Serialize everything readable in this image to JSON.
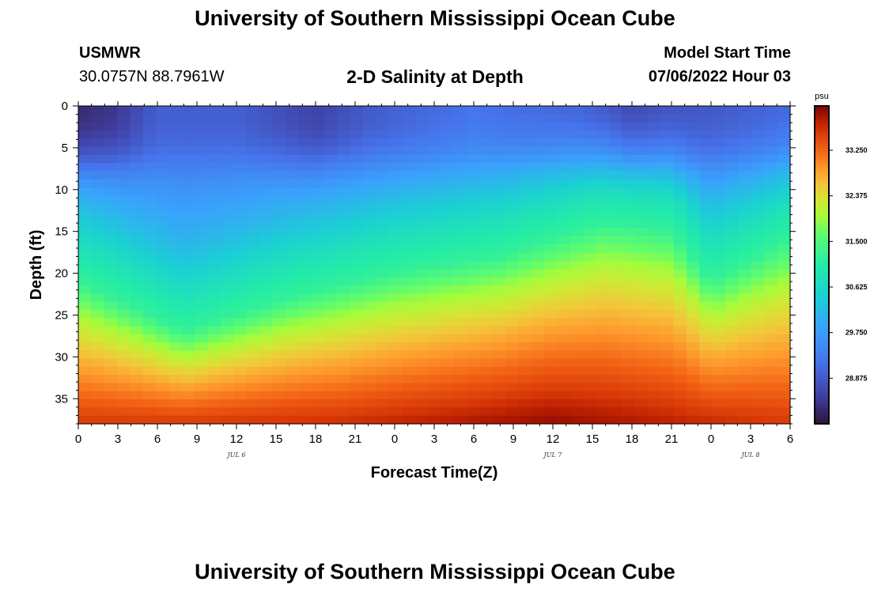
{
  "header": {
    "title": "University of Southern Mississippi Ocean Cube",
    "station": "USMWR",
    "coords": "30.0757N  88.7961W",
    "subtitle": "2-D Salinity at Depth",
    "start_label": "Model Start Time",
    "start_value": "07/06/2022 Hour 03"
  },
  "footer": {
    "title": "University of Southern Mississippi Ocean Cube"
  },
  "chart_data": {
    "type": "heatmap",
    "title": "2-D Salinity at Depth",
    "xlabel": "Forecast Time(Z)",
    "ylabel": "Depth (ft)",
    "x_range_hours": [
      0,
      54
    ],
    "y_range_ft": [
      0,
      38
    ],
    "x_tick_labels": [
      "0",
      "3",
      "6",
      "9",
      "12",
      "15",
      "18",
      "21",
      "0",
      "3",
      "6",
      "9",
      "12",
      "15",
      "18",
      "21",
      "0",
      "3",
      "6"
    ],
    "y_ticks": [
      0,
      5,
      10,
      15,
      20,
      25,
      30,
      35
    ],
    "day_labels": [
      {
        "text": "JUL 6",
        "hour": 12
      },
      {
        "text": "JUL 7",
        "hour": 36
      },
      {
        "text": "JUL 8",
        "hour": 51
      }
    ],
    "colorbar": {
      "unit": "psu",
      "min": 28.0,
      "max": 34.1,
      "tick_values": [
        28.875,
        29.75,
        30.625,
        31.5,
        32.375,
        33.25
      ],
      "tick_labels": [
        "28.875",
        "29.750",
        "30.625",
        "31.500",
        "32.375",
        "33.250"
      ]
    },
    "grid_shape": {
      "cols": 55,
      "rows": 39,
      "dx_hours": 1,
      "dy_ft": 1
    },
    "halocline_depth_ft": [
      {
        "hour": 0,
        "depth": 15
      },
      {
        "hour": 8,
        "depth": 21
      },
      {
        "hour": 16,
        "depth": 17
      },
      {
        "hour": 24,
        "depth": 14
      },
      {
        "hour": 32,
        "depth": 12
      },
      {
        "hour": 40,
        "depth": 8
      },
      {
        "hour": 45,
        "depth": 9
      },
      {
        "hour": 48,
        "depth": 15
      },
      {
        "hour": 54,
        "depth": 10
      }
    ],
    "surface_salinity_psu": [
      {
        "hour": 0,
        "value": 28.2
      },
      {
        "hour": 3,
        "value": 28.4
      },
      {
        "hour": 6,
        "value": 28.9
      },
      {
        "hour": 12,
        "value": 28.9
      },
      {
        "hour": 18,
        "value": 28.5
      },
      {
        "hour": 22,
        "value": 28.8
      },
      {
        "hour": 30,
        "value": 29.1
      },
      {
        "hour": 38,
        "value": 28.8
      },
      {
        "hour": 42,
        "value": 28.4
      },
      {
        "hour": 48,
        "value": 28.8
      },
      {
        "hour": 54,
        "value": 28.9
      }
    ],
    "bottom_salinity_psu": [
      {
        "hour": 0,
        "value": 33.6
      },
      {
        "hour": 20,
        "value": 33.7
      },
      {
        "hour": 36,
        "value": 34.0
      },
      {
        "hour": 54,
        "value": 33.6
      }
    ]
  }
}
